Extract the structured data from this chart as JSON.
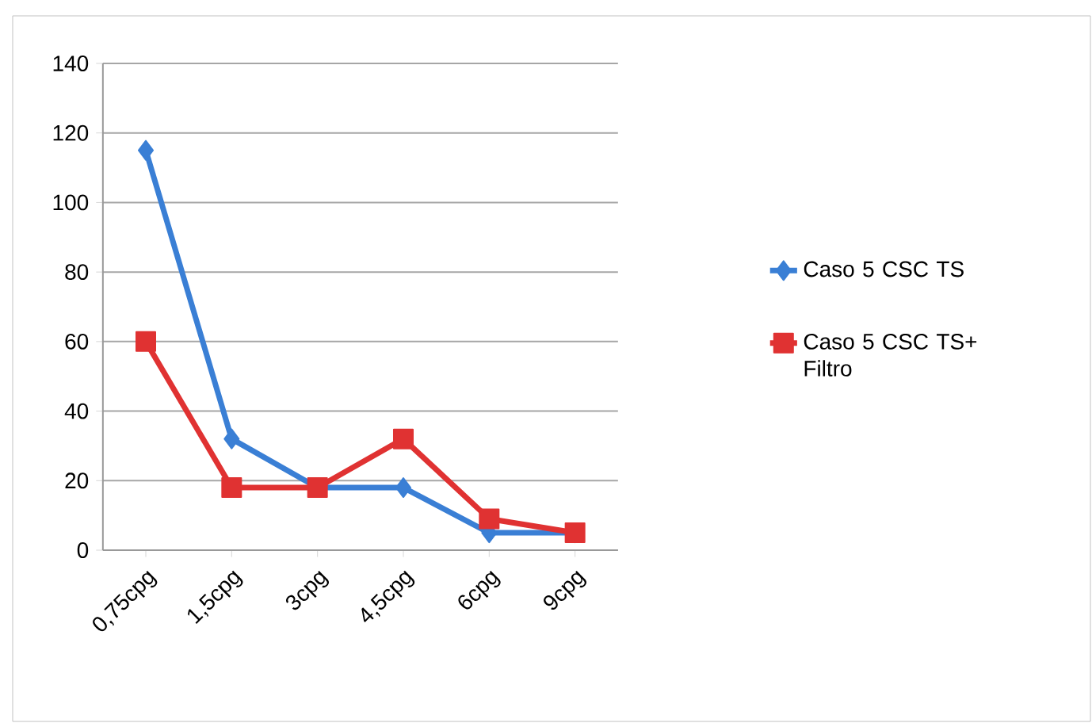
{
  "chart_data": {
    "type": "line",
    "categories": [
      "0,75cpg",
      "1,5cpg",
      "3cpg",
      "4,5cpg",
      "6cpg",
      "9cpg"
    ],
    "series": [
      {
        "name": "Caso 5 CSC TS",
        "color": "#3a7fd5",
        "values": [
          115,
          32,
          18,
          18,
          5,
          5
        ],
        "marker": "diamond"
      },
      {
        "name": "Caso 5 CSC TS+ Filtro",
        "color": "#e03232",
        "values": [
          60,
          18,
          18,
          32,
          9,
          5
        ],
        "marker": "square"
      }
    ],
    "ylim": [
      0,
      140
    ],
    "yticks": [
      0,
      20,
      40,
      60,
      80,
      100,
      120,
      140
    ],
    "grid": "y",
    "legend": "right"
  }
}
